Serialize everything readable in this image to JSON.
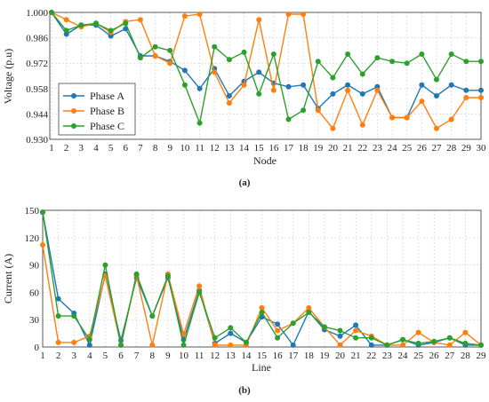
{
  "figure": {
    "caption_a": "(a)",
    "caption_b": "(b)"
  },
  "chart_data": [
    {
      "type": "line",
      "xlabel": "Node",
      "ylabel": "Voltage (p.u)",
      "x": [
        1,
        2,
        3,
        4,
        5,
        6,
        7,
        8,
        9,
        10,
        11,
        12,
        13,
        14,
        15,
        16,
        17,
        18,
        19,
        20,
        21,
        22,
        23,
        24,
        25,
        26,
        27,
        28,
        29,
        30
      ],
      "xlim": [
        1,
        30
      ],
      "ylim": [
        0.93,
        1.0
      ],
      "yticks": [
        "0.930",
        "0.944",
        "0.958",
        "0.972",
        "0.986",
        "1.000"
      ],
      "grid": true,
      "legend_position": "bottom-left",
      "series": [
        {
          "name": "Phase A",
          "color": "#1f77b4",
          "values": [
            1.0,
            0.988,
            0.993,
            0.993,
            0.987,
            0.991,
            0.976,
            0.976,
            0.973,
            0.968,
            0.958,
            0.969,
            0.954,
            0.962,
            0.967,
            0.961,
            0.959,
            0.96,
            0.947,
            0.955,
            0.96,
            0.955,
            0.959,
            0.942,
            0.942,
            0.96,
            0.954,
            0.96,
            0.957,
            0.957
          ]
        },
        {
          "name": "Phase B",
          "color": "#ff7f0e",
          "values": [
            1.0,
            0.996,
            0.992,
            0.994,
            0.989,
            0.995,
            0.996,
            0.976,
            0.972,
            0.998,
            0.999,
            0.967,
            0.95,
            0.96,
            0.996,
            0.957,
            0.999,
            0.999,
            0.946,
            0.936,
            0.957,
            0.938,
            0.957,
            0.942,
            0.942,
            0.951,
            0.936,
            0.941,
            0.953,
            0.953
          ]
        },
        {
          "name": "Phase C",
          "color": "#2ca02c",
          "values": [
            1.0,
            0.99,
            0.993,
            0.994,
            0.99,
            0.994,
            0.975,
            0.981,
            0.979,
            0.96,
            0.939,
            0.981,
            0.974,
            0.978,
            0.955,
            0.977,
            0.941,
            0.946,
            0.973,
            0.964,
            0.977,
            0.966,
            0.975,
            0.973,
            0.972,
            0.977,
            0.963,
            0.977,
            0.973,
            0.973
          ]
        }
      ]
    },
    {
      "type": "line",
      "xlabel": "Line",
      "ylabel": "Current (A)",
      "x": [
        1,
        2,
        3,
        4,
        5,
        6,
        7,
        8,
        9,
        10,
        11,
        12,
        13,
        14,
        15,
        16,
        17,
        18,
        19,
        20,
        21,
        22,
        23,
        24,
        25,
        26,
        27,
        28,
        29
      ],
      "xlim": [
        1,
        29
      ],
      "ylim": [
        0,
        150
      ],
      "yticks": [
        "0",
        "30",
        "60",
        "90",
        "120",
        "150"
      ],
      "grid": true,
      "series": [
        {
          "name": "Phase A",
          "color": "#1f77b4",
          "values": [
            148,
            53,
            37,
            2,
            80,
            7,
            76,
            34,
            76,
            8,
            62,
            4,
            15,
            5,
            33,
            25,
            2,
            39,
            19,
            12,
            24,
            2,
            2,
            8,
            2,
            5,
            10,
            2,
            2
          ]
        },
        {
          "name": "Phase B",
          "color": "#ff7f0e",
          "values": [
            112,
            5,
            5,
            12,
            78,
            2,
            78,
            2,
            80,
            14,
            67,
            2,
            2,
            2,
            43,
            18,
            26,
            43,
            22,
            2,
            18,
            12,
            2,
            2,
            16,
            5,
            2,
            16,
            2
          ]
        },
        {
          "name": "Phase C",
          "color": "#2ca02c",
          "values": [
            148,
            34,
            34,
            8,
            90,
            2,
            80,
            34,
            78,
            2,
            60,
            10,
            21,
            5,
            38,
            10,
            26,
            38,
            22,
            18,
            10,
            10,
            2,
            8,
            4,
            6,
            10,
            4,
            2
          ]
        }
      ]
    }
  ]
}
